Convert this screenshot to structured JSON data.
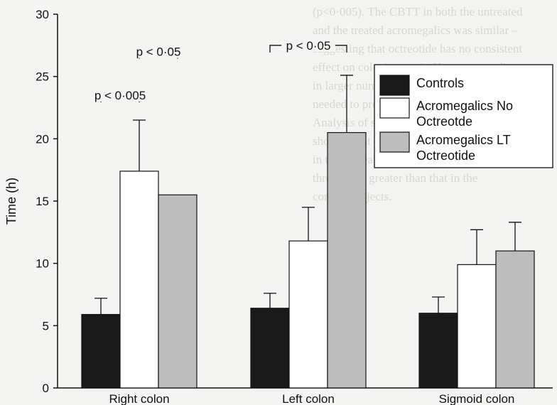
{
  "chart_data": {
    "type": "bar",
    "ylabel": "Time (h)",
    "xlabel": "",
    "ylim": [
      0,
      30
    ],
    "yticks": [
      0,
      5,
      10,
      15,
      20,
      25,
      30
    ],
    "categories": [
      "Right colon",
      "Left colon",
      "Sigmoid colon"
    ],
    "series": [
      {
        "name": "Controls",
        "color": "#1a1a1a",
        "values": [
          5.9,
          6.4,
          6.0
        ],
        "errors": [
          1.3,
          1.2,
          1.3
        ]
      },
      {
        "name": "Acromegalics No Octreotde",
        "color": "#ffffff",
        "values": [
          17.4,
          11.8,
          9.9
        ],
        "errors": [
          4.1,
          2.7,
          2.8
        ]
      },
      {
        "name": "Acromegalics LT Octreotide",
        "color": "#bdbdbd",
        "values": [
          15.5,
          20.5,
          11.0
        ],
        "errors": [
          0,
          4.6,
          2.3
        ]
      }
    ],
    "annotations": [
      {
        "text": "p < 0·05",
        "category": 0,
        "from_series": 1,
        "to_series": 2,
        "y": 27.0
      },
      {
        "text": "p < 0·005",
        "category": 0,
        "from_series": 0,
        "to_series": 1,
        "y": 23.5
      },
      {
        "text": "p < 0·05",
        "category": 1,
        "from_series": 0,
        "to_series": 2,
        "y": 27.5
      }
    ],
    "legend": {
      "position": "top-right",
      "entries": [
        {
          "label_lines": [
            "Controls"
          ],
          "color": "#1a1a1a"
        },
        {
          "label_lines": [
            "Acromegalics No",
            "Octreotde"
          ],
          "color": "#ffffff"
        },
        {
          "label_lines": [
            "Acromegalics LT",
            "Octreotide"
          ],
          "color": "#bdbdbd"
        }
      ]
    },
    "grid": false
  },
  "background_text": "(p<0·005). The CBTT in both the untreated\nand the treated acromegalics was similar –\nsuggesting that octreotide has no consistent\neffect on colonic transit. However, studies\nin larger numbers of patients would be\nneeded to prove or disprove this conclusion.\nAnalysis of segmental colonic transit\nshowed that the mean time for the right colon\nin the untreated acromegalic patients was\nthree times greater than that in the\ncontrol subjects."
}
